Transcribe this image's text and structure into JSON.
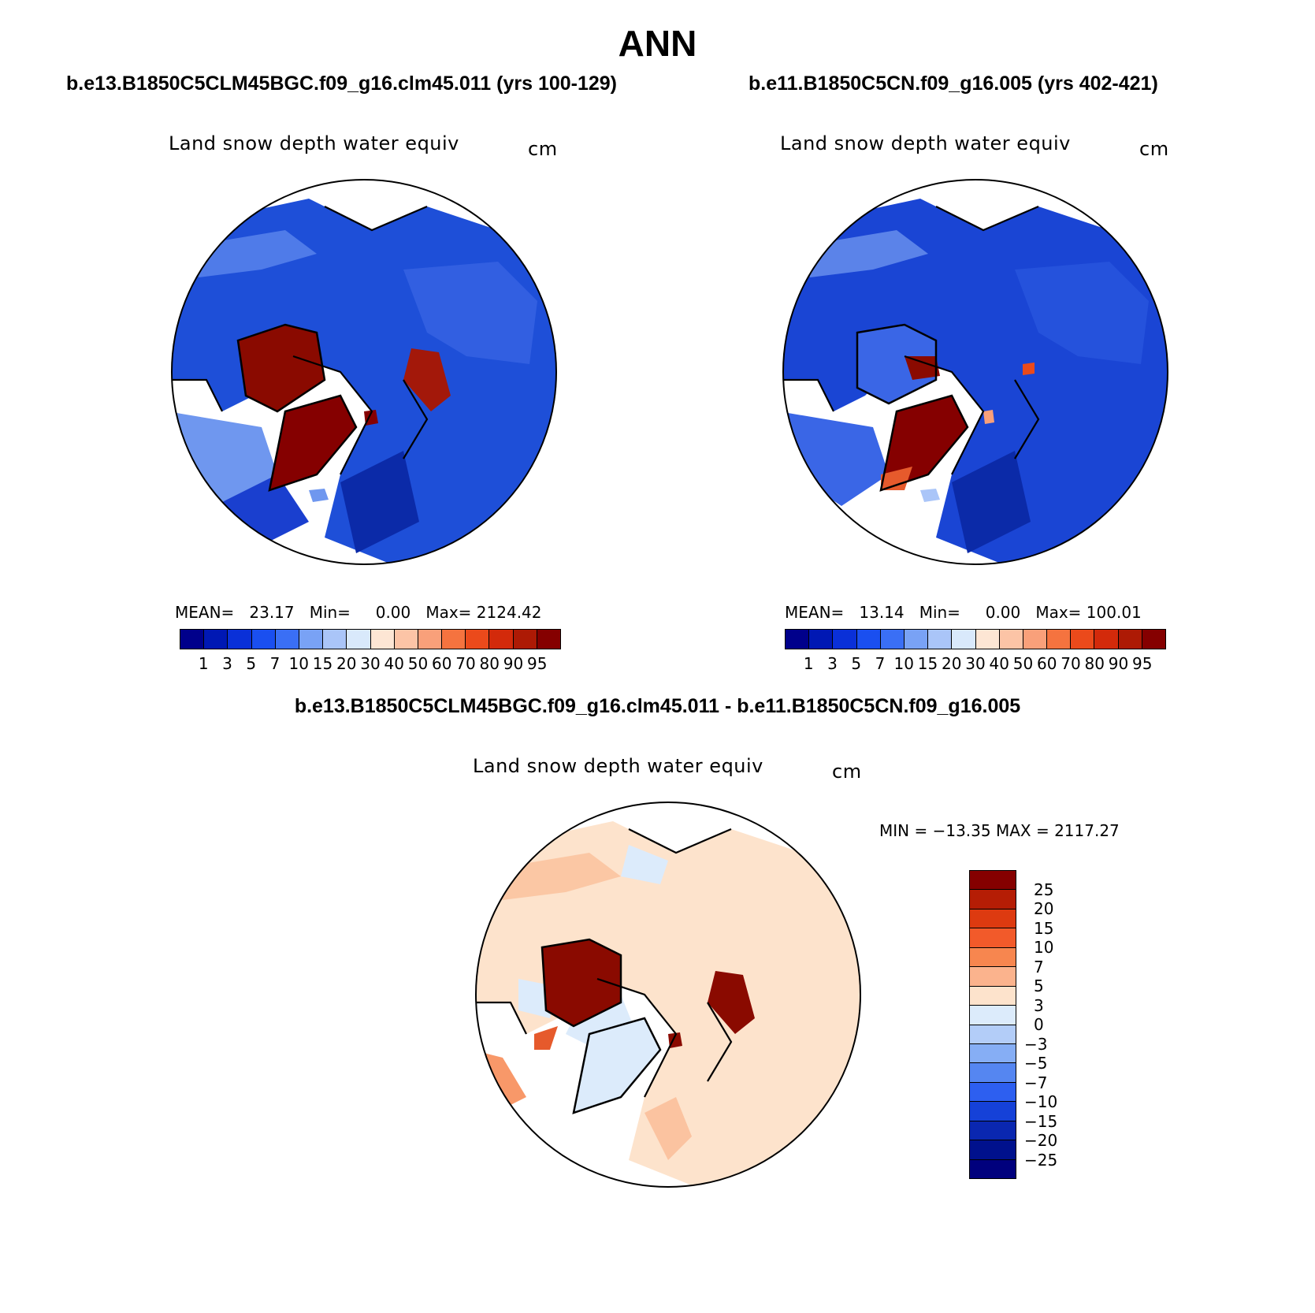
{
  "title": "ANN",
  "case1_title": "b.e13.B1850C5CLM45BGC.f09_g16.clm45.011 (yrs 100-129)",
  "case2_title": "b.e11.B1850C5CN.f09_g16.005 (yrs 402-421)",
  "diff_title": "b.e13.B1850C5CLM45BGC.f09_g16.clm45.011 - b.e11.B1850C5CN.f09_g16.005",
  "panels": {
    "p1": {
      "variable": "Land snow depth water equiv",
      "units": "cm",
      "stats": "MEAN=   23.17   Min=     0.00   Max= 2124.42"
    },
    "p2": {
      "variable": "Land snow depth water equiv",
      "units": "cm",
      "stats": "MEAN=   13.14   Min=     0.00   Max= 100.01"
    },
    "diff": {
      "variable": "Land snow depth water equiv",
      "units": "cm",
      "stats": "MIN = −13.35 MAX = 2117.27"
    }
  },
  "colorbar_abs": {
    "labels": [
      "1",
      "3",
      "5",
      "7",
      "10",
      "15",
      "20",
      "30",
      "40",
      "50",
      "60",
      "70",
      "80",
      "90",
      "95"
    ],
    "colors": [
      "#00008b",
      "#0018b4",
      "#0a30d8",
      "#1a4ff0",
      "#3a6ff5",
      "#79a2f5",
      "#aac5f8",
      "#d9e9fb",
      "#fde6d4",
      "#fcc4a6",
      "#f9a07a",
      "#f5733f",
      "#eb4a1b",
      "#d32a0b",
      "#ad1a05",
      "#850000"
    ]
  },
  "colorbar_diff": {
    "labels": [
      "25",
      "20",
      "15",
      "10",
      "7",
      "5",
      "3",
      "0",
      "−3",
      "−5",
      "−7",
      "−10",
      "−15",
      "−20",
      "−25"
    ],
    "colors": [
      "#850000",
      "#b51d05",
      "#dd3a10",
      "#f25a2a",
      "#f7864f",
      "#fbb38d",
      "#fde3cc",
      "#dcebfb",
      "#b3cdf8",
      "#86aef5",
      "#5586f1",
      "#2d5ff0",
      "#1541d8",
      "#0a27b0",
      "#00118d",
      "#00007d"
    ]
  }
}
